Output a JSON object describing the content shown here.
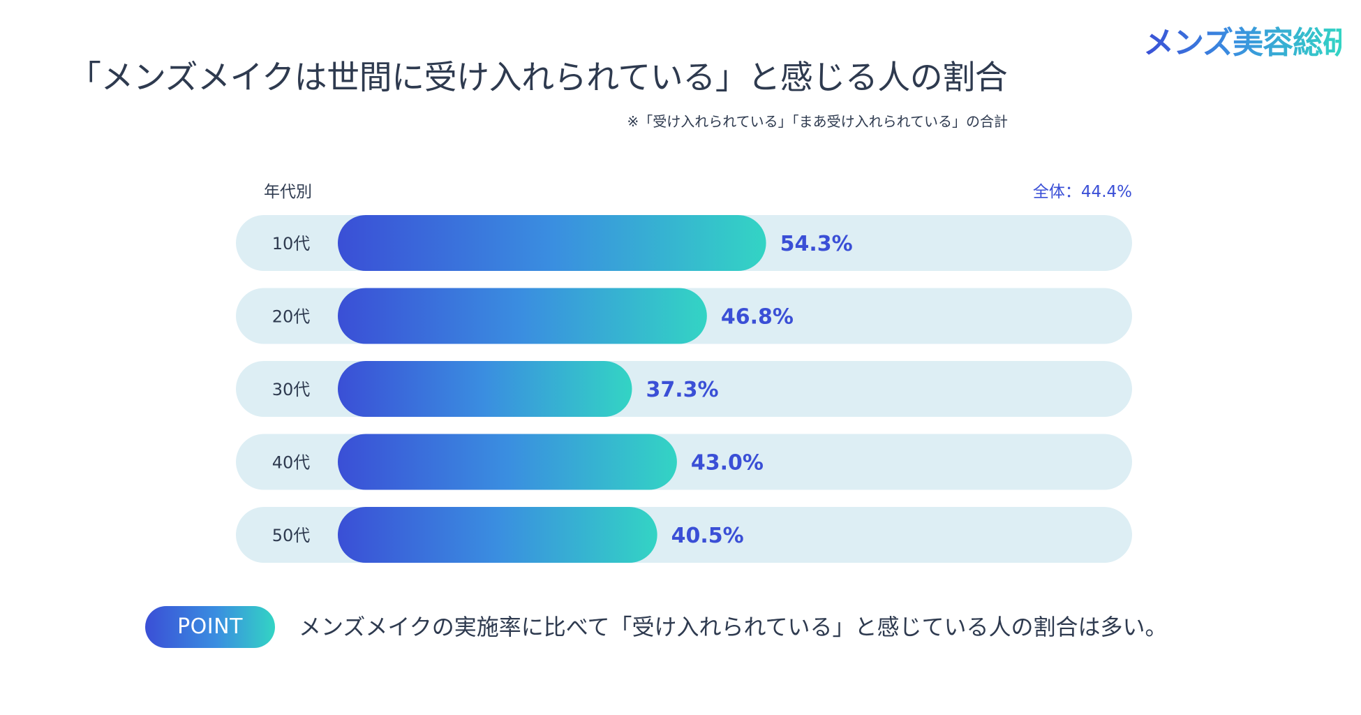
{
  "brand": {
    "logo_text": "メンズ美容総研"
  },
  "header": {
    "title": "「メンズメイクは世間に受け入れられている」と感じる人の割合",
    "note": "※「受け入れられている」「まあ受け入れられている」の合計"
  },
  "chart_labels": {
    "axis_caption": "年代別",
    "overall": "全体：44.4%"
  },
  "chart_data": {
    "type": "bar",
    "orientation": "horizontal",
    "title": "「メンズメイクは世間に受け入れられている」と感じる人の割合",
    "categories": [
      "10代",
      "20代",
      "30代",
      "40代",
      "50代"
    ],
    "values": [
      54.3,
      46.8,
      37.3,
      43.0,
      40.5
    ],
    "value_labels": [
      "54.3%",
      "46.8%",
      "37.3%",
      "43.0%",
      "40.5%"
    ],
    "unit": "%",
    "xlim": [
      0,
      100
    ],
    "overall_value": 44.4,
    "colors": {
      "gradient_start": "#3a4fd6",
      "gradient_mid": "#3a8ee0",
      "gradient_end": "#33d4c4",
      "track": "#ddeef4",
      "value_text": "#3a4fd6",
      "label_text": "#2e3a4f"
    }
  },
  "point": {
    "badge": "POINT",
    "text": "メンズメイクの実施率に比べて「受け入れられている」と感じている人の割合は多い。"
  }
}
